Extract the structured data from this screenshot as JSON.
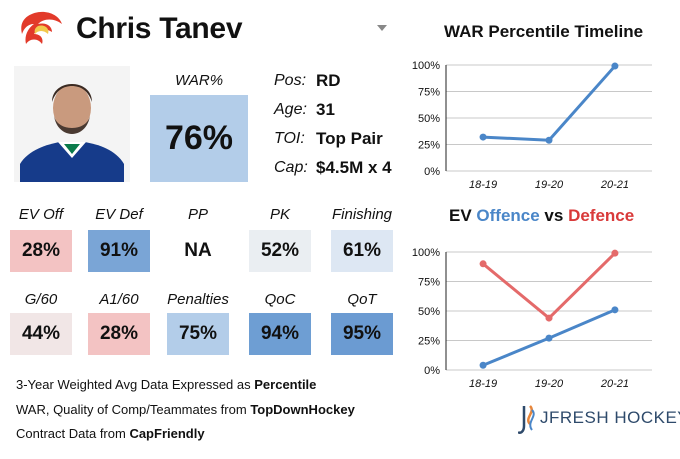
{
  "player": {
    "name": "Chris Tanev",
    "war_label": "WAR%",
    "war_value": "76%",
    "info": [
      {
        "key": "Pos:",
        "value": "RD"
      },
      {
        "key": "Age:",
        "value": "31"
      },
      {
        "key": "TOI:",
        "value": "Top Pair"
      },
      {
        "key": "Cap:",
        "value": "$4.5M x 4"
      }
    ]
  },
  "stats": [
    {
      "label": "EV Off",
      "value": "28%",
      "color": "#f3c3c3"
    },
    {
      "label": "EV Def",
      "value": "91%",
      "color": "#7aa5d6"
    },
    {
      "label": "PP",
      "value": "NA",
      "color": "#ffffff"
    },
    {
      "label": "PK",
      "value": "52%",
      "color": "#eaeef2"
    },
    {
      "label": "Finishing",
      "value": "61%",
      "color": "#dde7f3"
    },
    {
      "label": "G/60",
      "value": "44%",
      "color": "#f1e6e6"
    },
    {
      "label": "A1/60",
      "value": "28%",
      "color": "#f3c3c3"
    },
    {
      "label": "Penalties",
      "value": "75%",
      "color": "#b3cde9"
    },
    {
      "label": "QoC",
      "value": "94%",
      "color": "#6e9ed3"
    },
    {
      "label": "QoT",
      "value": "95%",
      "color": "#6b9bd2"
    }
  ],
  "footer": {
    "line1_prefix": "3-Year Weighted Avg Data Expressed as ",
    "line1_bold": "Percentile",
    "line2_prefix": "WAR, Quality of Comp/Teammates from ",
    "line2_bold": "TopDownHockey",
    "line3_prefix": "Contract Data from ",
    "line3_bold": "CapFriendly"
  },
  "brand": {
    "text": "JFRESH HOCKEY"
  },
  "colors": {
    "offence": "#4a86c8",
    "defence": "#d93a3a",
    "war_line": "#4a86c8",
    "defence_line": "#e46a6a"
  },
  "chart_data": [
    {
      "type": "line",
      "title": "WAR Percentile Timeline",
      "categories": [
        "18-19",
        "19-20",
        "20-21"
      ],
      "series": [
        {
          "values": [
            32,
            29,
            99
          ]
        }
      ],
      "ylim": [
        0,
        100
      ],
      "yticks": [
        "0%",
        "25%",
        "50%",
        "75%",
        "100%"
      ],
      "grid": true
    },
    {
      "type": "line",
      "title_parts": [
        "EV ",
        "Offence",
        " vs ",
        "Defence"
      ],
      "categories": [
        "18-19",
        "19-20",
        "20-21"
      ],
      "series": [
        {
          "name": "Offence",
          "values": [
            4,
            27,
            51
          ]
        },
        {
          "name": "Defence",
          "values": [
            90,
            44,
            99
          ]
        }
      ],
      "ylim": [
        0,
        100
      ],
      "yticks": [
        "0%",
        "25%",
        "50%",
        "75%",
        "100%"
      ],
      "grid": true
    }
  ]
}
